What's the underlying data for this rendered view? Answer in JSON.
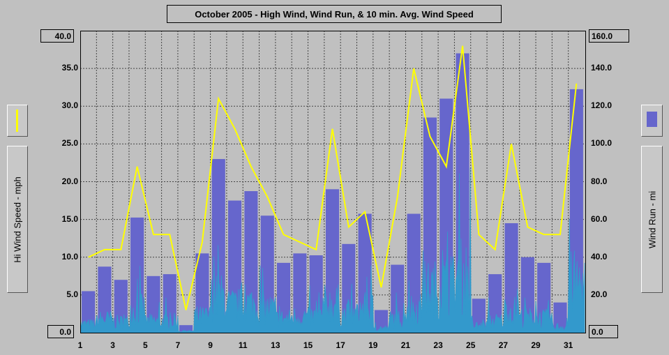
{
  "chart_data": {
    "type": "bar+line",
    "title": "October 2005 - High Wind, Wind Run, & 10 min. Avg. Wind Speed",
    "ylabel_left": "Hi Wind Speed - mph",
    "ylabel_right": "Wind Run - mi",
    "ylim_left": [
      0,
      40
    ],
    "ylim_right": [
      0,
      160
    ],
    "yticks_left": [
      "0.0",
      "5.0",
      "10.0",
      "15.0",
      "20.0",
      "25.0",
      "30.0",
      "35.0",
      "40.0"
    ],
    "yticks_right": [
      "0.0",
      "20.0",
      "40.0",
      "60.0",
      "80.0",
      "100.0",
      "120.0",
      "140.0",
      "160.0"
    ],
    "xticks": [
      "1",
      "3",
      "5",
      "7",
      "9",
      "11",
      "13",
      "15",
      "17",
      "19",
      "21",
      "23",
      "25",
      "27",
      "29",
      "31"
    ],
    "days": [
      1,
      2,
      3,
      4,
      5,
      6,
      7,
      8,
      9,
      10,
      11,
      12,
      13,
      14,
      15,
      16,
      17,
      18,
      19,
      20,
      21,
      22,
      23,
      24,
      25,
      26,
      27,
      28,
      29,
      30,
      31
    ],
    "series": [
      {
        "name": "Wind Run - mi",
        "type": "bar",
        "color": "#6666cc",
        "values": [
          22,
          35,
          28,
          61,
          30,
          31,
          4,
          42,
          92,
          70,
          75,
          62,
          37,
          42,
          41,
          76,
          47,
          63,
          12,
          36,
          63,
          114,
          124,
          148,
          18,
          31,
          58,
          40,
          37,
          16,
          129
        ]
      },
      {
        "name": "Hi Wind Speed - mph",
        "type": "line",
        "color": "#ffff00",
        "values": [
          10,
          11,
          11,
          22,
          13,
          13,
          3,
          12,
          31,
          27,
          22,
          18,
          13,
          12,
          11,
          27,
          14,
          16,
          6,
          18,
          35,
          26,
          22,
          38,
          13,
          11,
          25,
          14,
          13,
          13,
          33
        ]
      },
      {
        "name": "10 min. Avg. Wind Speed",
        "type": "area",
        "color": "#3399cc"
      }
    ]
  }
}
